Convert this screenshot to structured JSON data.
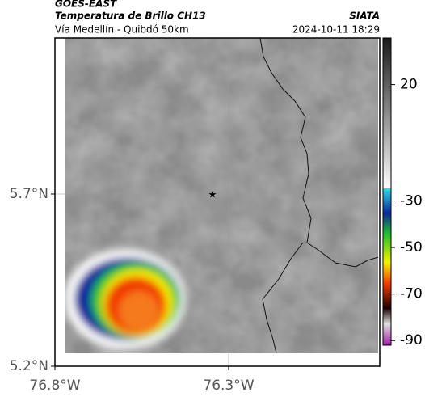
{
  "header": {
    "satellite": "GOES-EAST",
    "product": "Temperatura de Brillo CH13",
    "source": "SIATA",
    "region": "Vía Medellín - Quibdó 50km",
    "datetime": "2024-10-11 18:29"
  },
  "map": {
    "xlim": [
      -76.8,
      -75.865
    ],
    "ylim": [
      5.2,
      6.153
    ],
    "xticks": [
      {
        "value": -76.8,
        "label": "76.8°W"
      },
      {
        "value": -76.3,
        "label": "76.3°W"
      }
    ],
    "yticks": [
      {
        "value": 5.2,
        "label": "5.2°N"
      },
      {
        "value": 5.7,
        "label": "5.7°N"
      }
    ]
  },
  "colorbar": {
    "lim": [
      -92,
      40
    ],
    "ticks": [
      20,
      -30,
      -50,
      -70,
      -90
    ]
  }
}
